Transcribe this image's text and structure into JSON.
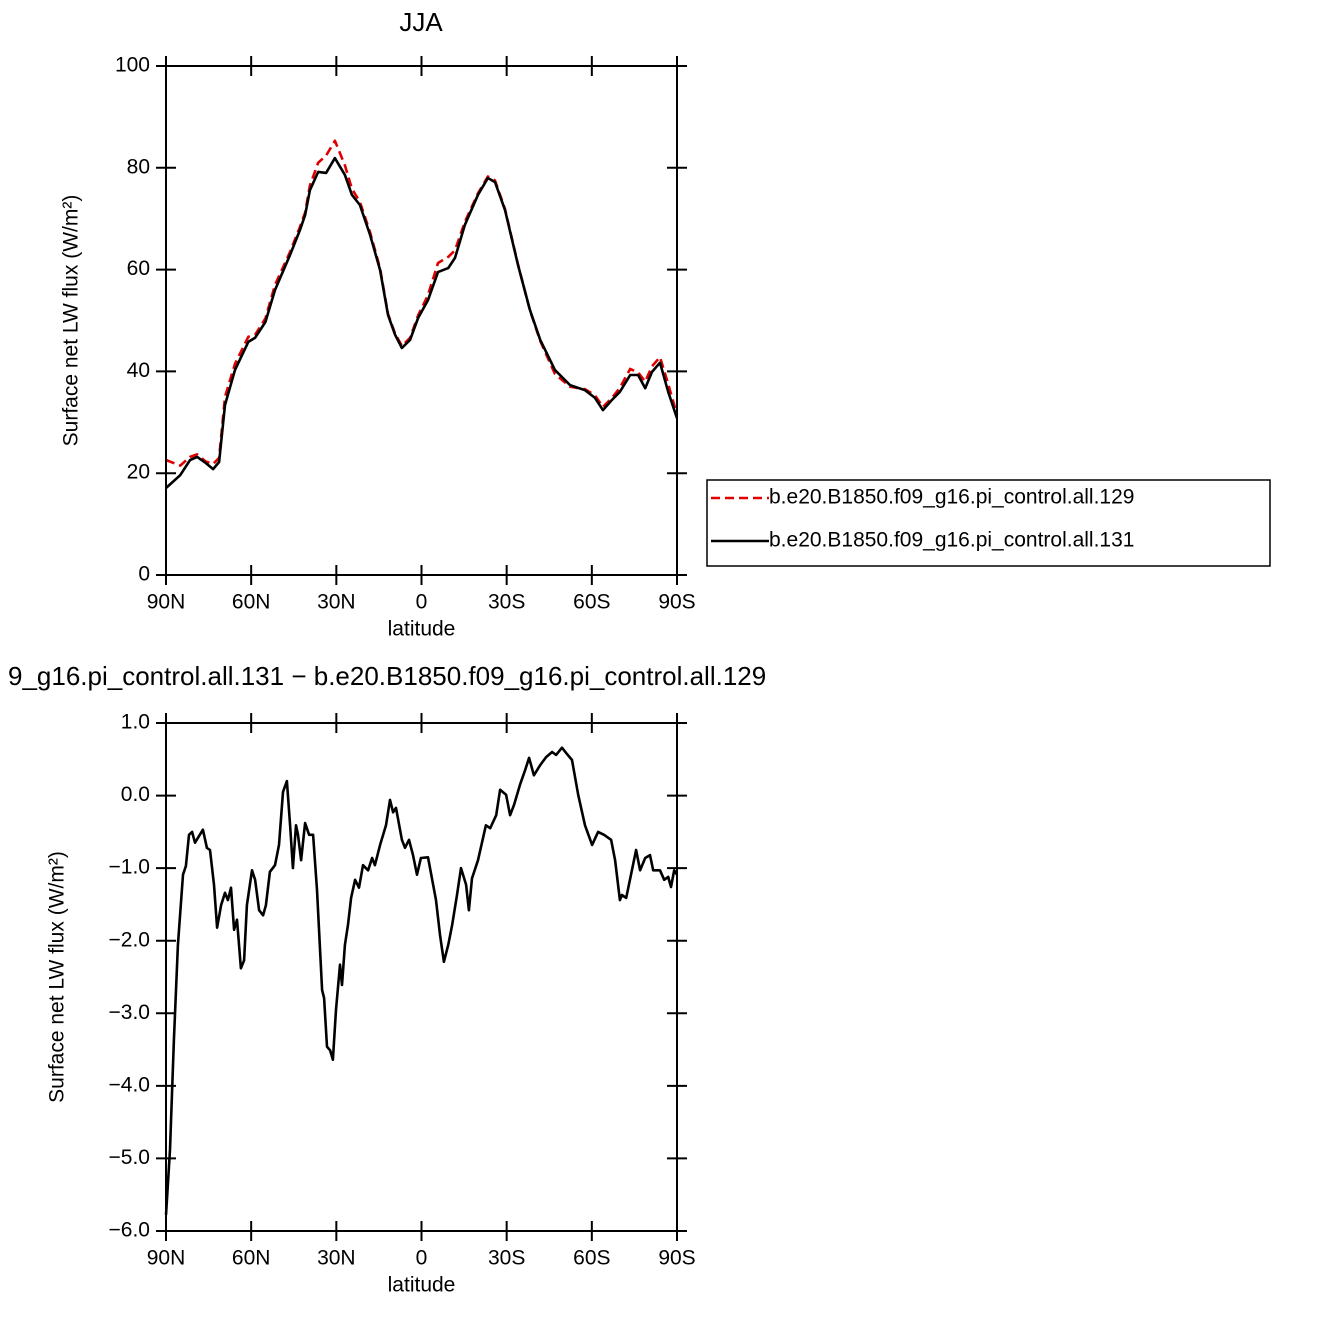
{
  "chart_data": [
    {
      "type": "line",
      "title": "JJA",
      "xlabel": "latitude",
      "ylabel": "Surface net LW flux (W/m²)",
      "xlim": [
        90,
        -90
      ],
      "xticks": [
        {
          "value": 90,
          "label": "90N"
        },
        {
          "value": 60,
          "label": "60N"
        },
        {
          "value": 30,
          "label": "30N"
        },
        0,
        {
          "value": -30,
          "label": "30S"
        },
        {
          "value": -60,
          "label": "60S"
        },
        {
          "value": -90,
          "label": "90S"
        }
      ],
      "ylim": [
        0,
        100
      ],
      "yticks": [
        0,
        20,
        40,
        60,
        80,
        100
      ],
      "legend": "right",
      "x": [
        90,
        85,
        81.5,
        79,
        76,
        73.4,
        71.3,
        69.2,
        65.7,
        61,
        58.6,
        55,
        51.6,
        46.3,
        42.8,
        41,
        39.3,
        36.4,
        33.6,
        30.5,
        27,
        24.5,
        21.7,
        18.1,
        14.6,
        11.8,
        9.3,
        6.9,
        4,
        1.2,
        -2.3,
        -5.8,
        -9.4,
        -11.8,
        -15.3,
        -19.9,
        -23.4,
        -25.9,
        -29.4,
        -34,
        -38.2,
        -41.8,
        -47,
        -52.3,
        -57.6,
        -61.1,
        -63.9,
        -67.1,
        -69.9,
        -73.5,
        -76.3,
        -78.8,
        -81.2,
        -84,
        -86.9,
        -90
      ],
      "series": [
        {
          "name": "b.e20.B1850.f09_g16.pi_control.all.129",
          "color": "#e00000",
          "linestyle": "dashed",
          "values": [
            22.6,
            21.5,
            23.2,
            23.7,
            22.3,
            21.8,
            23,
            35,
            41.5,
            46.8,
            47.2,
            50.4,
            57,
            63.5,
            68.4,
            71.2,
            76.5,
            81,
            82.4,
            85.3,
            80.5,
            75.9,
            73.3,
            67.3,
            60.2,
            51.3,
            47.4,
            45,
            46.6,
            51,
            55,
            61.3,
            62.5,
            63.8,
            69.4,
            75,
            78.3,
            77.5,
            71.9,
            61,
            52,
            46,
            39.5,
            37,
            36.5,
            35.3,
            33,
            34.8,
            36.8,
            40.5,
            39.8,
            38,
            41,
            42.8,
            37.5,
            31.5
          ]
        },
        {
          "name": "b.e20.B1850.f09_g16.pi_control.all.131",
          "color": "#000000",
          "linestyle": "solid",
          "values": [
            17.1,
            19.6,
            22.6,
            23.2,
            22,
            20.8,
            22.2,
            33.4,
            40.3,
            45.8,
            46.6,
            49.7,
            56,
            62.9,
            67.8,
            70.7,
            75.6,
            79.2,
            79,
            81.9,
            78.6,
            74.7,
            72.7,
            66.8,
            59.9,
            51.1,
            47.2,
            44.6,
            46.2,
            50.5,
            54,
            59.5,
            60.3,
            62.3,
            68.8,
            74.7,
            78,
            77.2,
            71.7,
            60.9,
            52.1,
            46.2,
            40.3,
            37.3,
            36.3,
            34.8,
            32.4,
            34.4,
            36,
            39.3,
            39.3,
            36.7,
            39.9,
            41.7,
            36,
            30.8
          ]
        }
      ]
    },
    {
      "type": "line",
      "title": "9_g16.pi_control.all.131 − b.e20.B1850.f09_g16.pi_control.all.129",
      "xlabel": "latitude",
      "ylabel": "Surface net LW flux (W/m²)",
      "xlim": [
        90,
        -90
      ],
      "xticks": [
        {
          "value": 90,
          "label": "90N"
        },
        {
          "value": 60,
          "label": "60N"
        },
        {
          "value": 30,
          "label": "30N"
        },
        0,
        {
          "value": -30,
          "label": "30S"
        },
        {
          "value": -60,
          "label": "60S"
        },
        {
          "value": -90,
          "label": "90S"
        }
      ],
      "ylim": [
        -6,
        1
      ],
      "yticks": [
        {
          "value": 1,
          "label": "1.0"
        },
        {
          "value": 0,
          "label": "0.0"
        },
        {
          "value": -1,
          "label": "−1.0"
        },
        {
          "value": -2,
          "label": "−2.0"
        },
        {
          "value": -3,
          "label": "−3.0"
        },
        {
          "value": -4,
          "label": "−4.0"
        },
        {
          "value": -5,
          "label": "−5.0"
        },
        {
          "value": -6,
          "label": "−6.0"
        }
      ],
      "x": [
        90,
        88.6,
        87.2,
        85.8,
        84,
        83,
        81.9,
        80.8,
        79.8,
        77,
        75.6,
        74.5,
        73.1,
        72,
        70.6,
        69.2,
        68.2,
        67.1,
        66,
        65,
        63.6,
        62.5,
        61.5,
        59.7,
        58.6,
        57.2,
        55.8,
        54.8,
        53.4,
        51.6,
        50.2,
        48.8,
        47.4,
        46.3,
        45.3,
        44.2,
        43.5,
        42.4,
        41,
        39.6,
        38.2,
        36.8,
        35,
        34.3,
        33.3,
        32.2,
        31.2,
        30.1,
        28.7,
        28,
        27,
        25.9,
        24.8,
        23.4,
        22,
        20.6,
        18.8,
        17.4,
        16.4,
        14.6,
        12.5,
        11.1,
        10,
        9,
        6.9,
        5.8,
        4.4,
        3,
        1.6,
        0.2,
        -2.3,
        -5.1,
        -6.5,
        -7.9,
        -9.4,
        -10.8,
        -12.5,
        -13.9,
        -15.7,
        -16.7,
        -17.8,
        -19.9,
        -22.7,
        -24.2,
        -26.3,
        -27.7,
        -29.8,
        -31.2,
        -32.6,
        -34.7,
        -36.5,
        -37.9,
        -39.6,
        -41.8,
        -43.9,
        -46,
        -47.4,
        -49.5,
        -50.9,
        -53,
        -55.2,
        -57.6,
        -60.1,
        -62.2,
        -64.3,
        -66.8,
        -68.2,
        -69.9,
        -70.6,
        -72.1,
        -73.8,
        -75.6,
        -77,
        -78.8,
        -80.5,
        -81.6,
        -84,
        -85.5,
        -86.9,
        -87.9,
        -89,
        -90
      ],
      "series": [
        {
          "color": "#000000",
          "linestyle": "solid",
          "values": [
            -5.78,
            -4.88,
            -3.37,
            -2.06,
            -1.09,
            -0.97,
            -0.54,
            -0.5,
            -0.65,
            -0.47,
            -0.72,
            -0.75,
            -1.23,
            -1.82,
            -1.51,
            -1.34,
            -1.44,
            -1.27,
            -1.85,
            -1.71,
            -2.38,
            -2.27,
            -1.51,
            -1.03,
            -1.16,
            -1.58,
            -1.65,
            -1.51,
            -1.05,
            -0.96,
            -0.68,
            0.05,
            0.2,
            -0.41,
            -1,
            -0.41,
            -0.54,
            -0.89,
            -0.38,
            -0.54,
            -0.54,
            -1.3,
            -2.68,
            -2.79,
            -3.46,
            -3.51,
            -3.64,
            -2.95,
            -2.33,
            -2.61,
            -2.06,
            -1.78,
            -1.41,
            -1.16,
            -1.27,
            -0.96,
            -1.03,
            -0.86,
            -0.96,
            -0.68,
            -0.41,
            -0.06,
            -0.23,
            -0.17,
            -0.61,
            -0.72,
            -0.61,
            -0.82,
            -1.09,
            -0.86,
            -0.85,
            -1.44,
            -1.92,
            -2.29,
            -2.06,
            -1.78,
            -1.37,
            -1,
            -1.23,
            -1.58,
            -1.14,
            -0.89,
            -0.41,
            -0.45,
            -0.27,
            0.08,
            0.01,
            -0.27,
            -0.13,
            0.15,
            0.35,
            0.52,
            0.28,
            0.42,
            0.53,
            0.6,
            0.56,
            0.66,
            0.59,
            0.49,
            0.01,
            -0.41,
            -0.68,
            -0.5,
            -0.54,
            -0.61,
            -0.89,
            -1.44,
            -1.37,
            -1.41,
            -1.09,
            -0.75,
            -1.03,
            -0.86,
            -0.82,
            -1.03,
            -1.03,
            -1.16,
            -1.12,
            -1.26,
            -1.03,
            -1.09
          ]
        }
      ]
    }
  ]
}
